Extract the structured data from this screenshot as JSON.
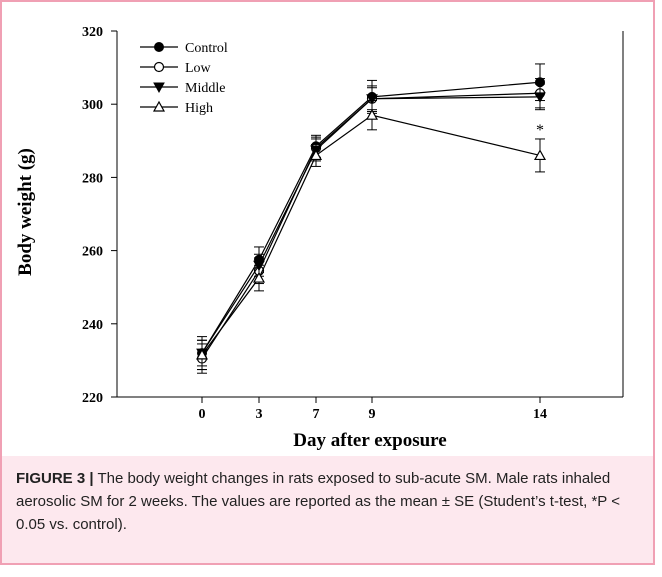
{
  "chart_data": {
    "type": "line",
    "xlabel": "Day after exposure",
    "ylabel": "Body weight (g)",
    "categories": [
      "0",
      "3",
      "7",
      "9",
      "14"
    ],
    "ylim": [
      220,
      320
    ],
    "yticks": [
      220,
      240,
      260,
      280,
      300,
      320
    ],
    "grid": false,
    "legend_position": "top-left",
    "series": [
      {
        "name": "Control",
        "marker": "filled-circle",
        "values": [
          232,
          257.5,
          288.5,
          302,
          306
        ],
        "errors": [
          4.5,
          3.5,
          3,
          4.5,
          5
        ]
      },
      {
        "name": "Low",
        "marker": "open-circle",
        "values": [
          230.5,
          254.5,
          288,
          301.5,
          303
        ],
        "errors": [
          4,
          3.5,
          3,
          3.5,
          4
        ]
      },
      {
        "name": "Middle",
        "marker": "filled-triangle-down",
        "values": [
          232,
          256,
          287.5,
          301.5,
          302
        ],
        "errors": [
          3.5,
          3,
          3,
          3,
          3.5
        ]
      },
      {
        "name": "High",
        "marker": "open-triangle-up",
        "values": [
          231.5,
          252.5,
          286,
          297,
          286
        ],
        "errors": [
          4,
          3.5,
          3,
          4,
          4.5
        ]
      }
    ],
    "annotations": [
      {
        "text": "*",
        "category": "14",
        "series": "High"
      }
    ]
  },
  "caption": {
    "label": "FIGURE 3 |",
    "text": " The body weight changes in rats exposed to sub-acute SM. Male rats inhaled aerosolic SM for 2 weeks. The values are reported as the mean ± SE (Student’s t-test, *P < 0.05 vs. control)."
  }
}
